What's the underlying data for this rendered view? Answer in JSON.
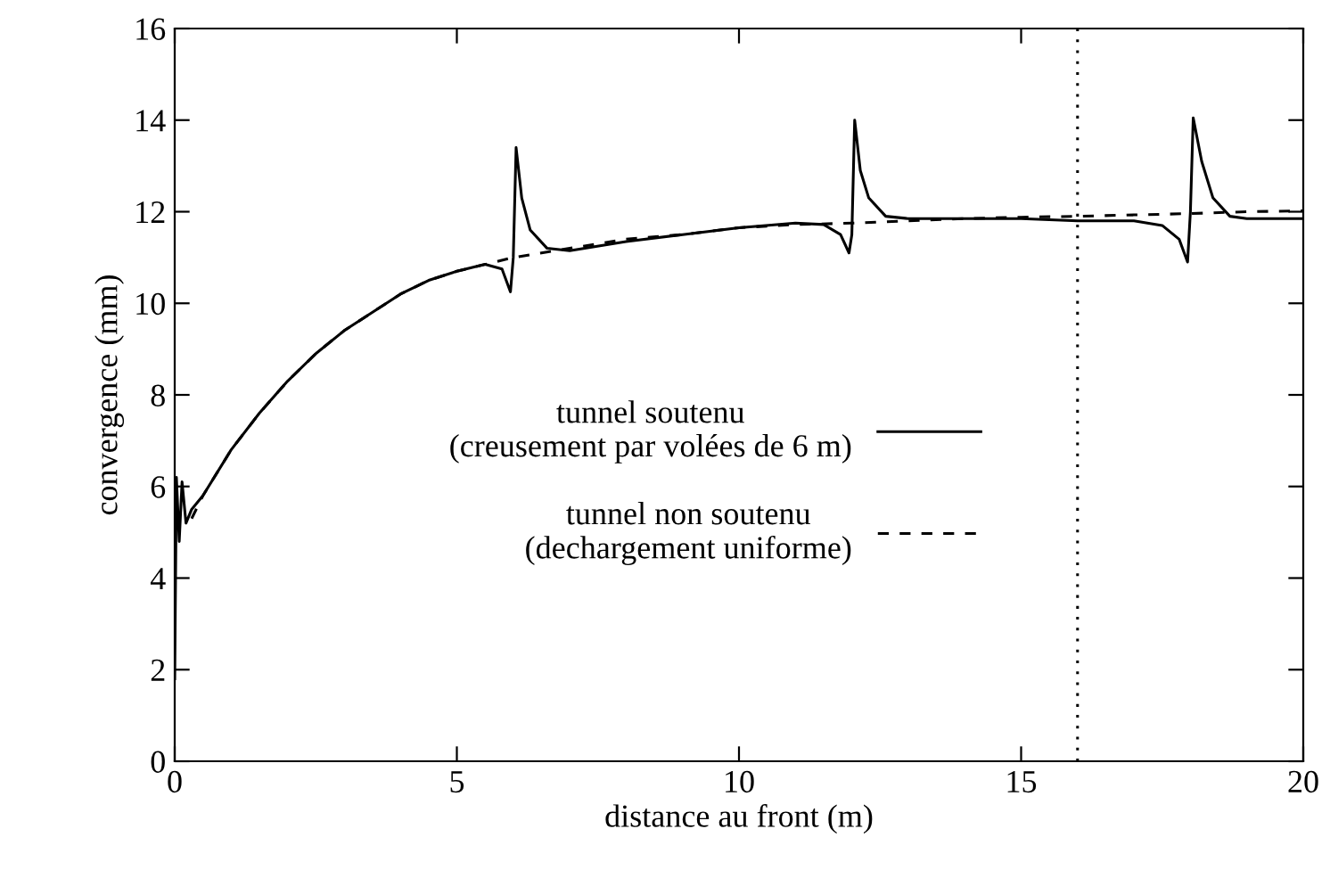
{
  "chart_data": {
    "type": "line",
    "xlabel": "distance au front (m)",
    "ylabel": "convergence (mm)",
    "xlim": [
      0,
      20
    ],
    "ylim": [
      0,
      16
    ],
    "xticks": [
      0,
      5,
      10,
      15,
      20
    ],
    "yticks": [
      0,
      2,
      4,
      6,
      8,
      10,
      12,
      14,
      16
    ],
    "grid": false,
    "legend": "right",
    "marker": "none",
    "ref_lines": [
      {
        "axis": "x",
        "value": 16,
        "label": null,
        "color": "#000000",
        "line_style": "dotted"
      }
    ],
    "series": [
      {
        "name": "tunnel soutenu\n(creusement par volées de 6 m)",
        "color": "#000000",
        "line_style": "solid",
        "x": [
          0,
          0.03,
          0.08,
          0.13,
          0.2,
          0.3,
          0.5,
          1,
          1.5,
          2,
          2.5,
          3,
          3.5,
          4,
          4.5,
          5,
          5.5,
          5.8,
          5.95,
          6.0,
          6.05,
          6.15,
          6.3,
          6.6,
          7,
          8,
          9,
          10,
          11,
          11.5,
          11.8,
          11.95,
          12.0,
          12.05,
          12.15,
          12.3,
          12.6,
          13,
          14,
          15,
          16,
          17,
          17.5,
          17.8,
          17.95,
          18.0,
          18.05,
          18.2,
          18.4,
          18.7,
          19,
          20
        ],
        "values": [
          1.8,
          6.2,
          4.8,
          6.1,
          5.2,
          5.5,
          5.8,
          6.8,
          7.6,
          8.3,
          8.9,
          9.4,
          9.8,
          10.2,
          10.5,
          10.7,
          10.85,
          10.75,
          10.25,
          11.0,
          13.4,
          12.3,
          11.6,
          11.2,
          11.15,
          11.35,
          11.5,
          11.65,
          11.75,
          11.72,
          11.5,
          11.1,
          11.5,
          14.0,
          12.9,
          12.3,
          11.9,
          11.85,
          11.85,
          11.85,
          11.8,
          11.8,
          11.7,
          11.4,
          10.9,
          12.0,
          14.05,
          13.1,
          12.3,
          11.9,
          11.85,
          11.85
        ]
      },
      {
        "name": "tunnel non soutenu\n(dechargement uniforme)",
        "color": "#000000",
        "line_style": "dashed",
        "x": [
          0.3,
          0.5,
          1,
          1.5,
          2,
          2.5,
          3,
          3.5,
          4,
          4.5,
          5,
          6,
          7,
          8,
          9,
          10,
          11,
          12,
          13,
          14,
          15,
          16,
          17,
          18,
          19,
          20
        ],
        "values": [
          5.3,
          5.8,
          6.8,
          7.6,
          8.3,
          8.9,
          9.4,
          9.8,
          10.2,
          10.5,
          10.7,
          11.0,
          11.2,
          11.4,
          11.5,
          11.65,
          11.72,
          11.75,
          11.8,
          11.85,
          11.88,
          11.9,
          11.93,
          11.96,
          12.0,
          12.02
        ]
      }
    ]
  }
}
